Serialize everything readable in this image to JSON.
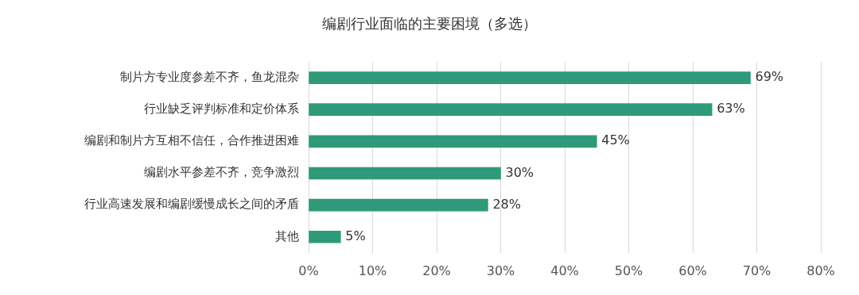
{
  "chart_data": {
    "type": "bar",
    "orientation": "horizontal",
    "title": "编剧行业面临的主要困境（多选）",
    "categories": [
      "制片方专业度参差不齐，鱼龙混杂",
      "行业缺乏评判标准和定价体系",
      "编剧和制片方互相不信任，合作推进困难",
      "编剧水平参差不齐，竞争激烈",
      "行业高速发展和编剧缓慢成长之间的矛盾",
      "其他"
    ],
    "values": [
      69,
      63,
      45,
      30,
      28,
      5
    ],
    "value_labels": [
      "69%",
      "63%",
      "45%",
      "30%",
      "28%",
      "5%"
    ],
    "color": "#2e9a7a",
    "xlim": [
      0,
      80
    ],
    "xticks": [
      {
        "value": 0,
        "label": "0%"
      },
      {
        "value": 10,
        "label": "10%"
      },
      {
        "value": 20,
        "label": "20%"
      },
      {
        "value": 30,
        "label": "30%"
      },
      {
        "value": 40,
        "label": "40%"
      },
      {
        "value": 50,
        "label": "50%"
      },
      {
        "value": 60,
        "label": "60%"
      },
      {
        "value": 70,
        "label": "70%"
      },
      {
        "value": 80,
        "label": "80%"
      }
    ],
    "grid": "x"
  }
}
